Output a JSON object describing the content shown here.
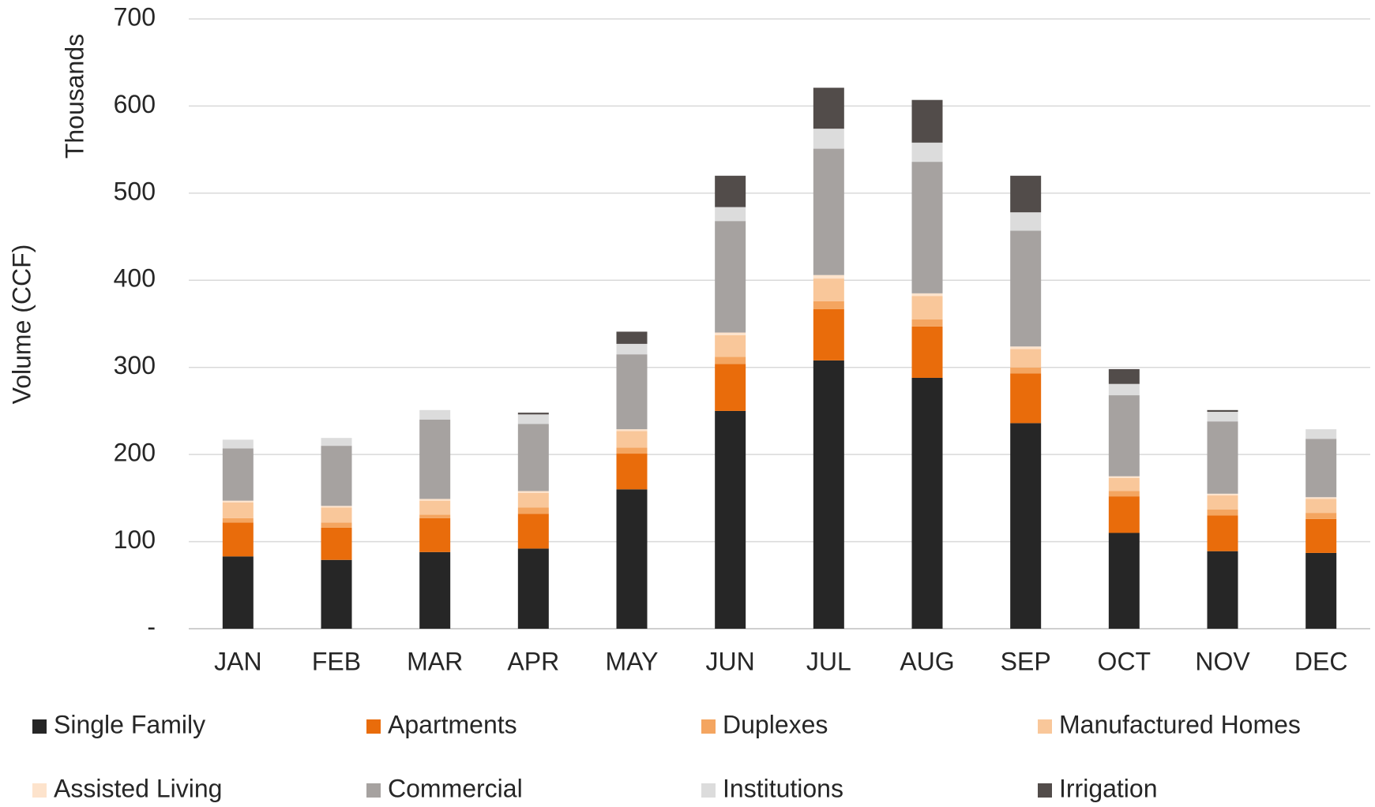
{
  "chart_data": {
    "type": "stacked_bar",
    "y_label": "Volume (CCF)",
    "y_unit_label": "Thousands",
    "categories": [
      "JAN",
      "FEB",
      "MAR",
      "APR",
      "MAY",
      "JUN",
      "JUL",
      "AUG",
      "SEP",
      "OCT",
      "NOV",
      "DEC"
    ],
    "series": [
      {
        "name": "Single Family",
        "color": "#262626",
        "values": [
          83,
          79,
          88,
          92,
          160,
          250,
          308,
          288,
          236,
          110,
          89,
          87
        ]
      },
      {
        "name": "Apartments",
        "color": "#e96c0b",
        "values": [
          39,
          37,
          39,
          40,
          41,
          54,
          59,
          59,
          57,
          42,
          41,
          39
        ]
      },
      {
        "name": "Duplexes",
        "color": "#f4a560",
        "values": [
          5,
          6,
          4,
          7,
          7,
          8,
          9,
          8,
          7,
          6,
          7,
          7
        ]
      },
      {
        "name": "Manufactured Homes",
        "color": "#f9c79a",
        "values": [
          18,
          17,
          16,
          17,
          19,
          25,
          26,
          27,
          21,
          15,
          16,
          16
        ]
      },
      {
        "name": "Assisted Living",
        "color": "#fde3cc",
        "values": [
          2,
          2,
          2,
          2,
          2,
          3,
          4,
          3,
          3,
          2,
          2,
          2
        ]
      },
      {
        "name": "Commercial",
        "color": "#a6a2a0",
        "values": [
          60,
          69,
          91,
          77,
          86,
          128,
          145,
          151,
          133,
          93,
          83,
          67
        ]
      },
      {
        "name": "Institutions",
        "color": "#dcdcdc",
        "values": [
          10,
          9,
          11,
          11,
          12,
          16,
          23,
          22,
          21,
          13,
          11,
          11
        ]
      },
      {
        "name": "Irrigation",
        "color": "#524c4a",
        "values": [
          0,
          0,
          0,
          2,
          14,
          36,
          47,
          49,
          42,
          17,
          2,
          0
        ]
      }
    ],
    "ylim": [
      0,
      700
    ],
    "yticks": [
      {
        "value": 0,
        "label": "-"
      },
      100,
      200,
      300,
      400,
      500,
      600,
      700
    ],
    "grid": true,
    "legend": "bottom"
  }
}
